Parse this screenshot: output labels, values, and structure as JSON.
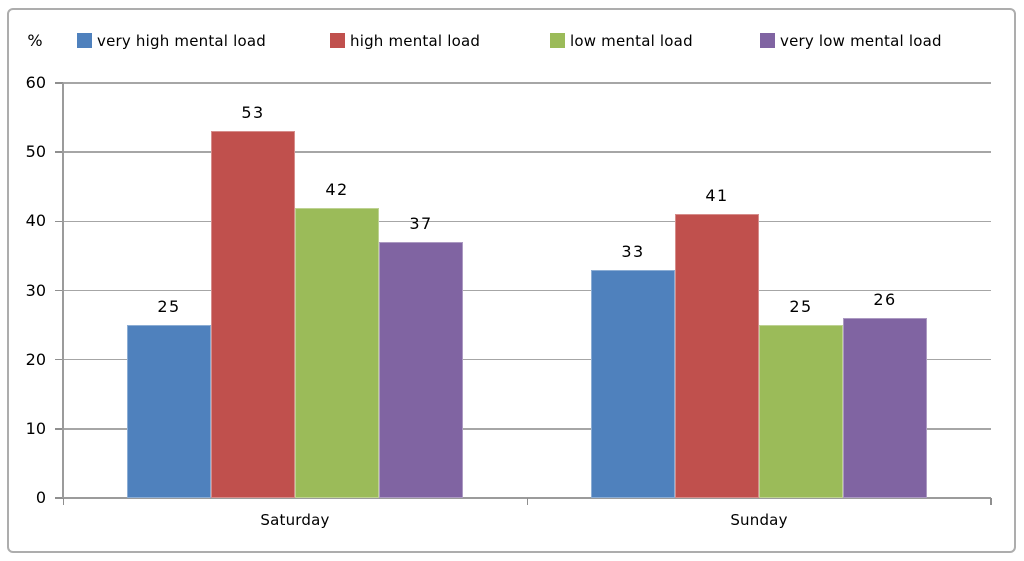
{
  "chart_data": {
    "type": "bar",
    "title": "",
    "xlabel": "",
    "ylabel": "%",
    "categories": [
      "Saturday",
      "Sunday"
    ],
    "series": [
      {
        "name": "very high mental load",
        "color": "#4F81BD",
        "values": [
          25,
          33
        ]
      },
      {
        "name": "high mental load",
        "color": "#C0504D",
        "values": [
          53,
          41
        ]
      },
      {
        "name": "low mental load",
        "color": "#9BBB59",
        "values": [
          42,
          25
        ]
      },
      {
        "name": "very low mental load",
        "color": "#8064A2",
        "values": [
          37,
          26
        ]
      }
    ],
    "ylim": [
      0,
      60
    ],
    "ytick_step": 10,
    "grid": true,
    "legend_position": "top",
    "data_labels": true
  }
}
